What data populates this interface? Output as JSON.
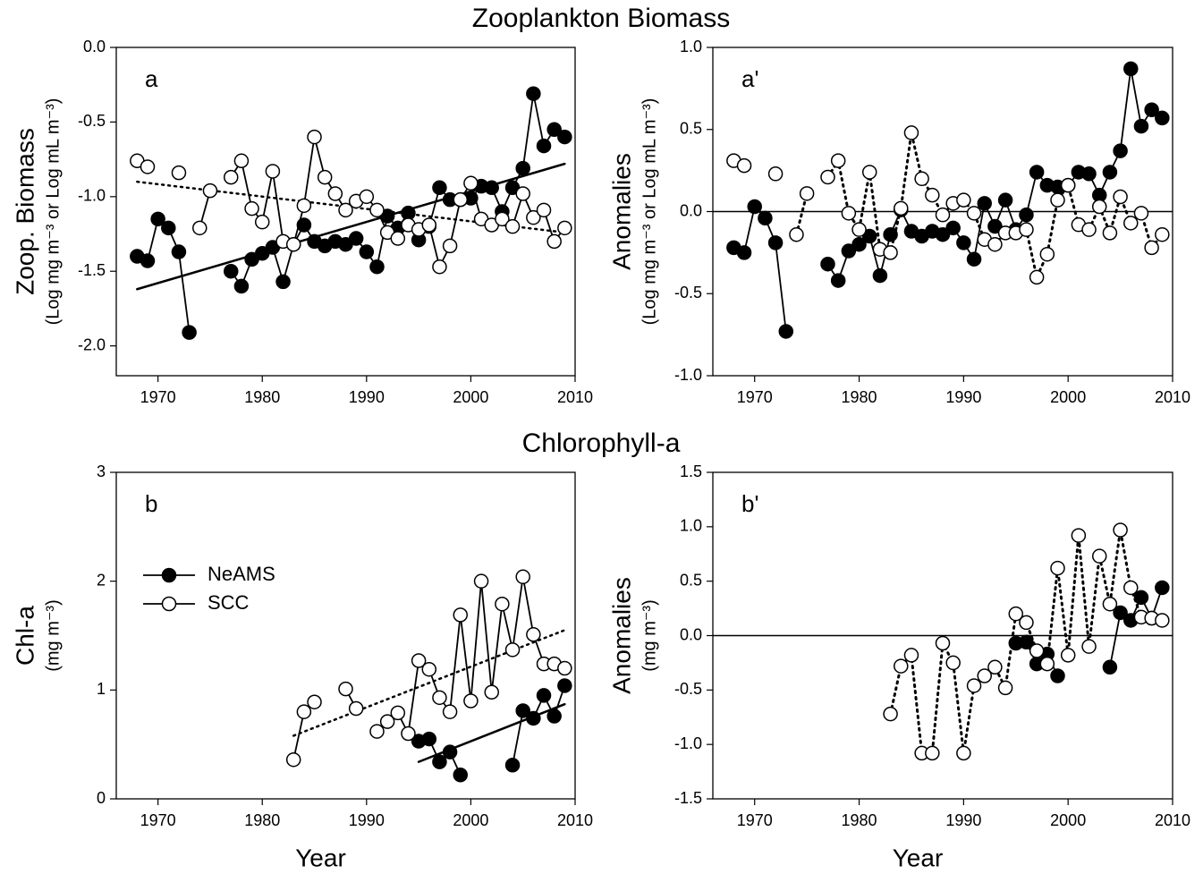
{
  "chart_data": [
    {
      "type": "line",
      "title": "Zooplankton Biomass",
      "panel_label": "a",
      "ylabel": "Zoop. Biomass",
      "ylabel_units": "(Log mg m⁻³  or Log mL m⁻³)",
      "xlim": [
        1966,
        2010
      ],
      "xticks": [
        1970,
        1980,
        1990,
        2000,
        2010
      ],
      "ylim": [
        -2.2,
        0
      ],
      "yticks": [
        {
          "value": -2,
          "label": "-2.0"
        },
        {
          "value": -1.5,
          "label": "-1.5"
        },
        {
          "value": -1,
          "label": "-1.0"
        },
        {
          "value": -0.5,
          "label": "-0.5"
        },
        {
          "value": 0,
          "label": "0.0"
        }
      ],
      "x": [
        1968,
        1969,
        1970,
        1971,
        1972,
        1973,
        1974,
        1975,
        1976,
        1977,
        1978,
        1979,
        1980,
        1981,
        1982,
        1983,
        1984,
        1985,
        1986,
        1987,
        1988,
        1989,
        1990,
        1991,
        1992,
        1993,
        1994,
        1995,
        1996,
        1997,
        1998,
        1999,
        2000,
        2001,
        2002,
        2003,
        2004,
        2005,
        2006,
        2007,
        2008,
        2009
      ],
      "series": [
        {
          "name": "NeAMS",
          "color": "#000000",
          "marker_fill": "#000000",
          "line_style": "solid",
          "values": [
            -1.4,
            -1.43,
            -1.15,
            -1.21,
            -1.37,
            -1.91,
            null,
            null,
            null,
            -1.5,
            -1.6,
            -1.42,
            -1.38,
            -1.34,
            -1.57,
            -1.32,
            -1.19,
            -1.3,
            -1.33,
            -1.3,
            -1.32,
            -1.28,
            -1.37,
            -1.47,
            -1.13,
            -1.21,
            -1.11,
            -1.29,
            -1.2,
            -0.94,
            -1.02,
            -1.02,
            -1.01,
            -0.93,
            -0.94,
            -1.1,
            -0.94,
            -0.81,
            -0.31,
            -0.66,
            -0.55,
            -0.6
          ],
          "trend": {
            "x": [
              1968,
              2009
            ],
            "values": [
              -1.62,
              -0.78
            ],
            "style": "solid"
          }
        },
        {
          "name": "SCC",
          "color": "#000000",
          "marker_fill": "#ffffff",
          "line_style": "solid",
          "values": [
            -0.76,
            -0.8,
            null,
            null,
            -0.84,
            null,
            -1.21,
            -0.96,
            null,
            -0.87,
            -0.76,
            -1.08,
            -1.17,
            -0.83,
            -1.3,
            -1.32,
            -1.06,
            -0.6,
            -0.87,
            -0.98,
            -1.09,
            -1.03,
            -1.0,
            -1.09,
            -1.24,
            -1.28,
            -1.19,
            -1.22,
            -1.19,
            -1.47,
            -1.33,
            -1.02,
            -0.91,
            -1.15,
            -1.19,
            -1.15,
            -1.2,
            -0.98,
            -1.14,
            -1.09,
            -1.3,
            -1.21
          ],
          "trend": {
            "x": [
              1968,
              2009
            ],
            "values": [
              -0.9,
              -1.24
            ],
            "style": "dotted"
          }
        }
      ]
    },
    {
      "type": "line",
      "panel_label": "a'",
      "ylabel": "Anomalies",
      "ylabel_units": "(Log mg m⁻³  or Log mL m⁻³)",
      "xlim": [
        1966,
        2010
      ],
      "xticks": [
        1970,
        1980,
        1990,
        2000,
        2010
      ],
      "ylim": [
        -1,
        1
      ],
      "yticks": [
        {
          "value": -1,
          "label": "-1.0"
        },
        {
          "value": -0.5,
          "label": "-0.5"
        },
        {
          "value": 0,
          "label": "0.0"
        },
        {
          "value": 0.5,
          "label": "0.5"
        },
        {
          "value": 1,
          "label": "1.0"
        }
      ],
      "reference_line": 0,
      "x": [
        1968,
        1969,
        1970,
        1971,
        1972,
        1973,
        1974,
        1975,
        1976,
        1977,
        1978,
        1979,
        1980,
        1981,
        1982,
        1983,
        1984,
        1985,
        1986,
        1987,
        1988,
        1989,
        1990,
        1991,
        1992,
        1993,
        1994,
        1995,
        1996,
        1997,
        1998,
        1999,
        2000,
        2001,
        2002,
        2003,
        2004,
        2005,
        2006,
        2007,
        2008,
        2009
      ],
      "series": [
        {
          "name": "NeAMS",
          "color": "#000000",
          "marker_fill": "#000000",
          "line_style": "solid",
          "values": [
            -0.22,
            -0.25,
            0.03,
            -0.04,
            -0.19,
            -0.73,
            null,
            null,
            null,
            -0.32,
            -0.42,
            -0.24,
            -0.2,
            -0.15,
            -0.39,
            -0.14,
            0.01,
            -0.12,
            -0.15,
            -0.12,
            -0.14,
            -0.1,
            -0.19,
            -0.29,
            0.05,
            -0.09,
            0.07,
            -0.11,
            -0.02,
            0.24,
            0.16,
            0.15,
            0.16,
            0.24,
            0.23,
            0.1,
            0.24,
            0.37,
            0.87,
            0.52,
            0.62,
            0.57
          ]
        },
        {
          "name": "SCC",
          "color": "#000000",
          "marker_fill": "#ffffff",
          "line_style": "dotted",
          "values": [
            0.31,
            0.28,
            null,
            null,
            0.23,
            null,
            -0.14,
            0.11,
            null,
            0.21,
            0.31,
            -0.01,
            -0.11,
            0.24,
            -0.23,
            -0.25,
            0.02,
            0.48,
            0.2,
            0.1,
            -0.02,
            0.05,
            0.07,
            -0.01,
            -0.17,
            -0.2,
            -0.13,
            -0.13,
            -0.11,
            -0.4,
            -0.26,
            0.07,
            0.16,
            -0.08,
            -0.11,
            0.03,
            -0.13,
            0.09,
            -0.07,
            -0.01,
            -0.22,
            -0.14
          ]
        }
      ]
    },
    {
      "type": "line",
      "title": "Chlorophyll-a",
      "panel_label": "b",
      "ylabel": "Chl-a",
      "ylabel_units": "(mg m⁻³)",
      "xlabel": "Year",
      "xlim": [
        1966,
        2010
      ],
      "xticks": [
        1970,
        1980,
        1990,
        2000,
        2010
      ],
      "ylim": [
        0,
        3
      ],
      "yticks": [
        0,
        1,
        2,
        3
      ],
      "legend": "center left",
      "x": [
        1983,
        1984,
        1985,
        1986,
        1987,
        1988,
        1989,
        1990,
        1991,
        1992,
        1993,
        1994,
        1995,
        1996,
        1997,
        1998,
        1999,
        2000,
        2001,
        2002,
        2003,
        2004,
        2005,
        2006,
        2007,
        2008,
        2009
      ],
      "series": [
        {
          "name": "NeAMS",
          "color": "#000000",
          "marker_fill": "#000000",
          "line_style": "solid",
          "values": [
            null,
            null,
            null,
            null,
            null,
            null,
            null,
            null,
            null,
            null,
            null,
            null,
            0.53,
            0.55,
            0.34,
            0.43,
            0.22,
            null,
            null,
            null,
            null,
            0.31,
            0.81,
            0.74,
            0.95,
            0.76,
            1.04
          ],
          "trend": {
            "x": [
              1995,
              2009
            ],
            "values": [
              0.34,
              0.87
            ],
            "style": "solid"
          }
        },
        {
          "name": "SCC",
          "color": "#000000",
          "marker_fill": "#ffffff",
          "line_style": "solid",
          "values": [
            0.36,
            0.8,
            0.89,
            null,
            null,
            1.01,
            0.83,
            null,
            0.62,
            0.71,
            0.79,
            0.6,
            1.27,
            1.19,
            0.93,
            0.8,
            1.69,
            0.9,
            2.0,
            0.98,
            1.79,
            1.37,
            2.04,
            1.51,
            1.24,
            1.24,
            1.2
          ],
          "trend": {
            "x": [
              1983,
              2009
            ],
            "values": [
              0.58,
              1.55
            ],
            "style": "dotted"
          }
        }
      ]
    },
    {
      "type": "line",
      "panel_label": "b'",
      "ylabel": "Anomalies",
      "ylabel_units": "(mg m⁻³)",
      "xlabel": "Year",
      "xlim": [
        1966,
        2010
      ],
      "xticks": [
        1970,
        1980,
        1990,
        2000,
        2010
      ],
      "ylim": [
        -1.5,
        1.5
      ],
      "yticks": [
        {
          "value": -1.5,
          "label": "-1.5"
        },
        {
          "value": -1,
          "label": "-1.0"
        },
        {
          "value": -0.5,
          "label": "-0.5"
        },
        {
          "value": 0,
          "label": "0.0"
        },
        {
          "value": 0.5,
          "label": "0.5"
        },
        {
          "value": 1,
          "label": "1.0"
        },
        {
          "value": 1.5,
          "label": "1.5"
        }
      ],
      "reference_line": 0,
      "x": [
        1983,
        1984,
        1985,
        1986,
        1987,
        1988,
        1989,
        1990,
        1991,
        1992,
        1993,
        1994,
        1995,
        1996,
        1997,
        1998,
        1999,
        2000,
        2001,
        2002,
        2003,
        2004,
        2005,
        2006,
        2007,
        2008,
        2009
      ],
      "series": [
        {
          "name": "NeAMS",
          "color": "#000000",
          "marker_fill": "#000000",
          "line_style": "solid",
          "values": [
            null,
            null,
            null,
            null,
            null,
            null,
            null,
            null,
            null,
            null,
            null,
            null,
            -0.07,
            -0.06,
            -0.26,
            -0.17,
            -0.37,
            null,
            null,
            null,
            null,
            -0.29,
            0.21,
            0.14,
            0.35,
            0.16,
            0.44
          ]
        },
        {
          "name": "SCC",
          "color": "#000000",
          "marker_fill": "#ffffff",
          "line_style": "dotted",
          "values": [
            -0.72,
            -0.28,
            -0.18,
            -1.08,
            -1.08,
            -0.07,
            -0.25,
            -1.08,
            -0.46,
            -0.37,
            -0.29,
            -0.48,
            0.2,
            0.12,
            -0.14,
            -0.26,
            0.62,
            -0.18,
            0.92,
            -0.1,
            0.73,
            0.29,
            0.97,
            0.44,
            0.17,
            0.16,
            0.14
          ]
        }
      ]
    }
  ]
}
